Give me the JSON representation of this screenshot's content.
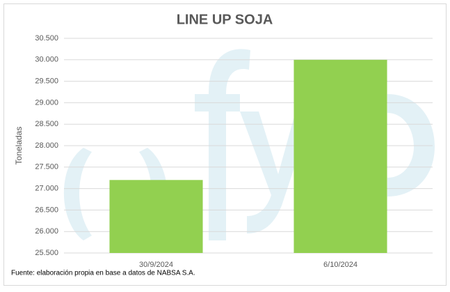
{
  "chart_data": {
    "type": "bar",
    "title": "LINE UP SOJA",
    "y_label": "Toneladas",
    "note": "Fuente: elaboración propia en base a datos de NABSA S.A.",
    "categories": [
      "30/9/2024",
      "6/10/2024"
    ],
    "values": [
      27200,
      30000
    ],
    "color": "#92d050",
    "ylim": [
      25500,
      30500
    ],
    "yticks": [
      {
        "value": 25500,
        "label": "25.500"
      },
      {
        "value": 26000,
        "label": "26.000"
      },
      {
        "value": 26500,
        "label": "26.500"
      },
      {
        "value": 27000,
        "label": "27.000"
      },
      {
        "value": 27500,
        "label": "27.500"
      },
      {
        "value": 28000,
        "label": "28.000"
      },
      {
        "value": 28500,
        "label": "28.500"
      },
      {
        "value": 29000,
        "label": "29.000"
      },
      {
        "value": 29500,
        "label": "29.500"
      },
      {
        "value": 30000,
        "label": "30.000"
      },
      {
        "value": 30500,
        "label": "30.500"
      }
    ],
    "grid": true
  }
}
